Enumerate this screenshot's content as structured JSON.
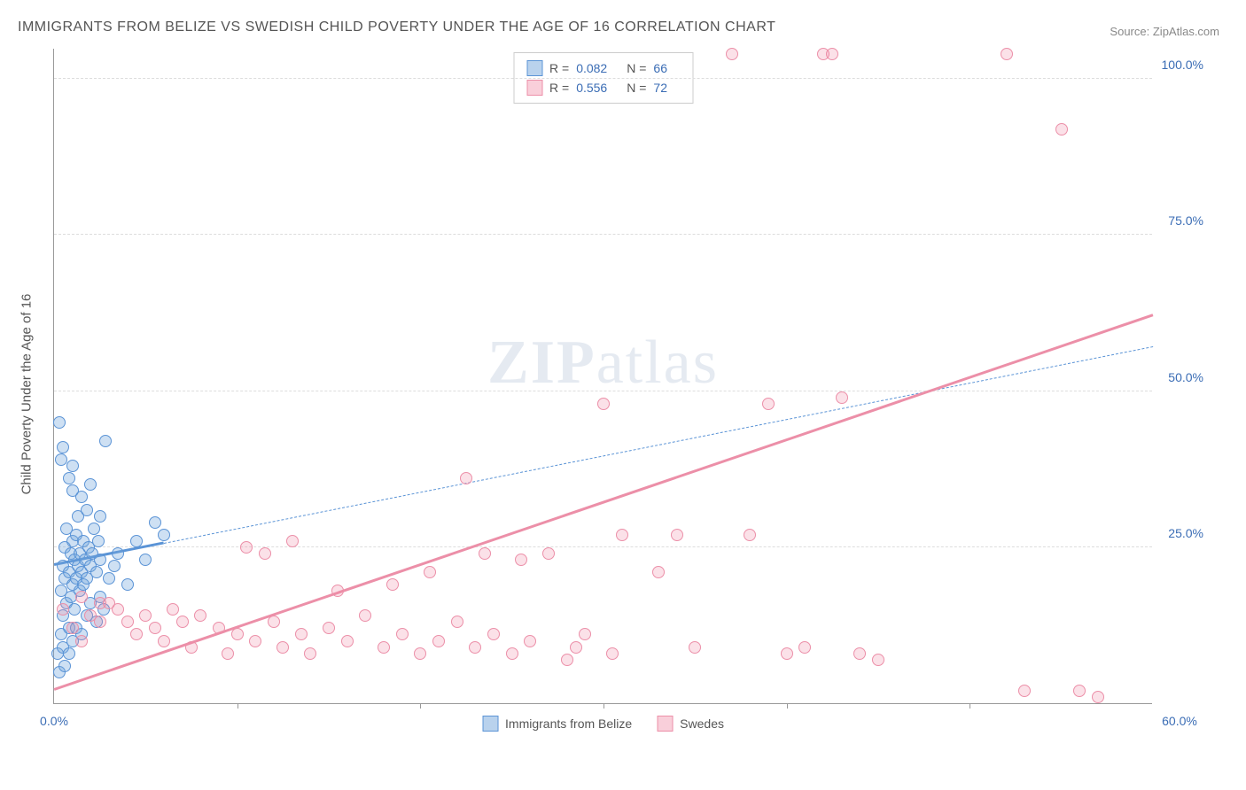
{
  "title": "IMMIGRANTS FROM BELIZE VS SWEDISH CHILD POVERTY UNDER THE AGE OF 16 CORRELATION CHART",
  "source_label": "Source:",
  "source_name": "ZipAtlas.com",
  "y_axis_label": "Child Poverty Under the Age of 16",
  "watermark": "ZIPatlas",
  "chart": {
    "type": "scatter",
    "xlim": [
      0,
      60
    ],
    "ylim": [
      0,
      105
    ],
    "x_ticks": [
      0,
      30,
      60
    ],
    "x_tick_labels": [
      "0.0%",
      "",
      "60.0%"
    ],
    "y_ticks": [
      25,
      50,
      75,
      100
    ],
    "y_tick_labels": [
      "25.0%",
      "50.0%",
      "75.0%",
      "100.0%"
    ],
    "grid_color": "#dddddd",
    "axis_color": "#999999",
    "background_color": "#ffffff",
    "series": [
      {
        "id": "belize",
        "label": "Immigrants from Belize",
        "color_fill": "rgba(116,166,220,0.35)",
        "color_stroke": "#5b94d6",
        "r_value": "0.082",
        "n_value": "66",
        "trend": {
          "x1": 0,
          "y1": 22,
          "x2": 60,
          "y2": 57,
          "solid_until_x": 6
        },
        "points": [
          [
            0.2,
            8
          ],
          [
            0.3,
            5
          ],
          [
            0.4,
            11
          ],
          [
            0.4,
            18
          ],
          [
            0.5,
            14
          ],
          [
            0.5,
            22
          ],
          [
            0.6,
            20
          ],
          [
            0.6,
            25
          ],
          [
            0.7,
            16
          ],
          [
            0.7,
            28
          ],
          [
            0.8,
            12
          ],
          [
            0.8,
            21
          ],
          [
            0.9,
            24
          ],
          [
            0.9,
            17
          ],
          [
            1.0,
            19
          ],
          [
            1.0,
            26
          ],
          [
            1.1,
            23
          ],
          [
            1.1,
            15
          ],
          [
            1.2,
            27
          ],
          [
            1.2,
            20
          ],
          [
            1.3,
            22
          ],
          [
            1.3,
            30
          ],
          [
            1.4,
            18
          ],
          [
            1.4,
            24
          ],
          [
            1.5,
            21
          ],
          [
            1.5,
            33
          ],
          [
            1.6,
            19
          ],
          [
            1.6,
            26
          ],
          [
            1.7,
            23
          ],
          [
            1.8,
            31
          ],
          [
            1.8,
            20
          ],
          [
            1.9,
            25
          ],
          [
            2.0,
            22
          ],
          [
            2.0,
            35
          ],
          [
            2.1,
            24
          ],
          [
            2.2,
            28
          ],
          [
            2.3,
            21
          ],
          [
            2.4,
            26
          ],
          [
            2.5,
            30
          ],
          [
            2.5,
            23
          ],
          [
            0.3,
            45
          ],
          [
            0.4,
            39
          ],
          [
            0.5,
            41
          ],
          [
            0.8,
            36
          ],
          [
            1.0,
            38
          ],
          [
            1.0,
            34
          ],
          [
            2.8,
            42
          ],
          [
            0.5,
            9
          ],
          [
            0.6,
            6
          ],
          [
            0.8,
            8
          ],
          [
            1.0,
            10
          ],
          [
            1.2,
            12
          ],
          [
            1.5,
            11
          ],
          [
            1.8,
            14
          ],
          [
            2.0,
            16
          ],
          [
            2.3,
            13
          ],
          [
            2.5,
            17
          ],
          [
            2.7,
            15
          ],
          [
            3.0,
            20
          ],
          [
            3.3,
            22
          ],
          [
            3.5,
            24
          ],
          [
            4.0,
            19
          ],
          [
            4.5,
            26
          ],
          [
            5.0,
            23
          ],
          [
            5.5,
            29
          ],
          [
            6.0,
            27
          ]
        ]
      },
      {
        "id": "swedes",
        "label": "Swedes",
        "color_fill": "rgba(240,135,162,0.25)",
        "color_stroke": "#ec8fa8",
        "r_value": "0.556",
        "n_value": "72",
        "trend": {
          "x1": 0,
          "y1": 2,
          "x2": 60,
          "y2": 62,
          "solid_until_x": 60
        },
        "points": [
          [
            0.5,
            15
          ],
          [
            1.0,
            12
          ],
          [
            1.5,
            10
          ],
          [
            2.0,
            14
          ],
          [
            2.5,
            13
          ],
          [
            3.0,
            16
          ],
          [
            3.5,
            15
          ],
          [
            4.0,
            13
          ],
          [
            4.5,
            11
          ],
          [
            5.0,
            14
          ],
          [
            5.5,
            12
          ],
          [
            6.0,
            10
          ],
          [
            6.5,
            15
          ],
          [
            7.0,
            13
          ],
          [
            7.5,
            9
          ],
          [
            8.0,
            14
          ],
          [
            9.0,
            12
          ],
          [
            9.5,
            8
          ],
          [
            10.0,
            11
          ],
          [
            10.5,
            25
          ],
          [
            11.0,
            10
          ],
          [
            11.5,
            24
          ],
          [
            12.0,
            13
          ],
          [
            12.5,
            9
          ],
          [
            13.0,
            26
          ],
          [
            13.5,
            11
          ],
          [
            14.0,
            8
          ],
          [
            15.0,
            12
          ],
          [
            15.5,
            18
          ],
          [
            16.0,
            10
          ],
          [
            17.0,
            14
          ],
          [
            18.0,
            9
          ],
          [
            18.5,
            19
          ],
          [
            19.0,
            11
          ],
          [
            20.0,
            8
          ],
          [
            20.5,
            21
          ],
          [
            21.0,
            10
          ],
          [
            22.0,
            13
          ],
          [
            22.5,
            36
          ],
          [
            23.0,
            9
          ],
          [
            23.5,
            24
          ],
          [
            24.0,
            11
          ],
          [
            25.0,
            8
          ],
          [
            25.5,
            23
          ],
          [
            26.0,
            10
          ],
          [
            27.0,
            24
          ],
          [
            28.0,
            7
          ],
          [
            28.5,
            9
          ],
          [
            29.0,
            11
          ],
          [
            30.0,
            48
          ],
          [
            30.5,
            8
          ],
          [
            31.0,
            27
          ],
          [
            33.0,
            21
          ],
          [
            34.0,
            27
          ],
          [
            35.0,
            9
          ],
          [
            37.0,
            104
          ],
          [
            38.0,
            27
          ],
          [
            39.0,
            48
          ],
          [
            40.0,
            8
          ],
          [
            41.0,
            9
          ],
          [
            42.0,
            104
          ],
          [
            42.5,
            104
          ],
          [
            43.0,
            49
          ],
          [
            44.0,
            8
          ],
          [
            45.0,
            7
          ],
          [
            52.0,
            104
          ],
          [
            53.0,
            2
          ],
          [
            55.0,
            92
          ],
          [
            56.0,
            2
          ],
          [
            57.0,
            1
          ],
          [
            1.5,
            17
          ],
          [
            2.5,
            16
          ]
        ]
      }
    ]
  },
  "legend_top": {
    "rows": [
      {
        "series": "belize",
        "r_label": "R =",
        "n_label": "N ="
      },
      {
        "series": "swedes",
        "r_label": "R =",
        "n_label": "N ="
      }
    ]
  }
}
